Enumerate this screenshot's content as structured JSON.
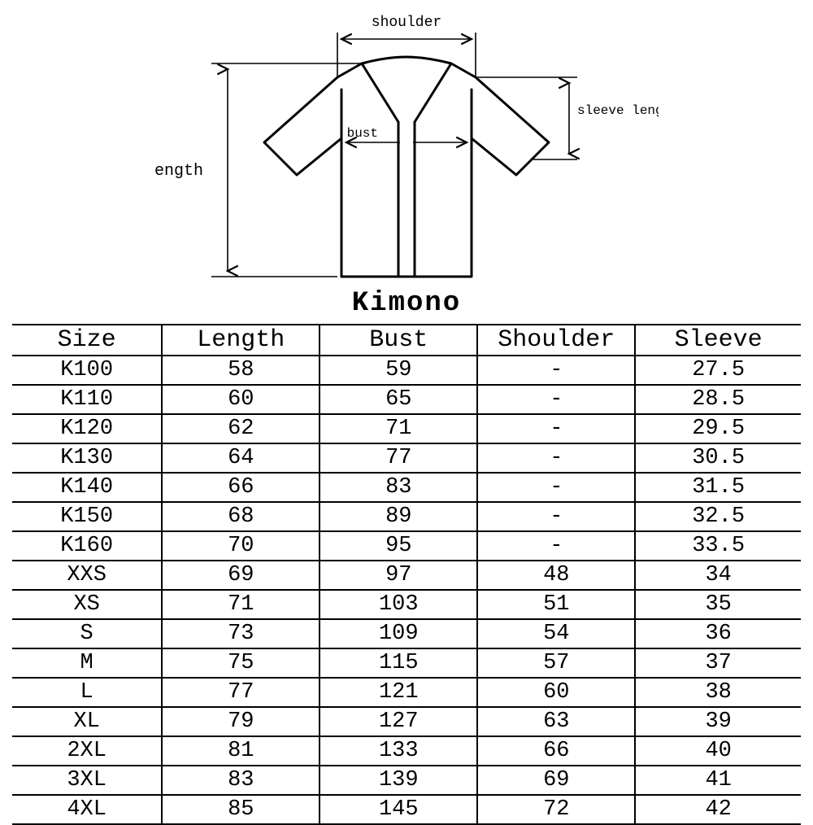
{
  "title": "Kimono",
  "diagram": {
    "labels": {
      "shoulder": "shoulder",
      "bust": "bust",
      "length": "length",
      "sleeve_length": "sleeve length"
    },
    "stroke": "#000000",
    "stroke_width": 3,
    "thin_stroke_width": 1.6,
    "label_fontsize_small": 18,
    "label_fontsize_medium": 20
  },
  "table": {
    "columns": [
      "Size",
      "Length",
      "Bust",
      "Shoulder",
      "Sleeve"
    ],
    "col_separators_after": [
      0,
      1,
      2,
      3
    ],
    "rows": [
      [
        "K100",
        "58",
        "59",
        "-",
        "27.5"
      ],
      [
        "K110",
        "60",
        "65",
        "-",
        "28.5"
      ],
      [
        "K120",
        "62",
        "71",
        "-",
        "29.5"
      ],
      [
        "K130",
        "64",
        "77",
        "-",
        "30.5"
      ],
      [
        "K140",
        "66",
        "83",
        "-",
        "31.5"
      ],
      [
        "K150",
        "68",
        "89",
        "-",
        "32.5"
      ],
      [
        "K160",
        "70",
        "95",
        "-",
        "33.5"
      ],
      [
        "XXS",
        "69",
        "97",
        "48",
        "34"
      ],
      [
        "XS",
        "71",
        "103",
        "51",
        "35"
      ],
      [
        "S",
        "73",
        "109",
        "54",
        "36"
      ],
      [
        "M",
        "75",
        "115",
        "57",
        "37"
      ],
      [
        "L",
        "77",
        "121",
        "60",
        "38"
      ],
      [
        "XL",
        "79",
        "127",
        "63",
        "39"
      ],
      [
        "2XL",
        "81",
        "133",
        "66",
        "40"
      ],
      [
        "3XL",
        "83",
        "139",
        "69",
        "41"
      ],
      [
        "4XL",
        "85",
        "145",
        "72",
        "42"
      ]
    ]
  },
  "colors": {
    "background": "#ffffff",
    "text": "#000000",
    "border": "#000000"
  }
}
